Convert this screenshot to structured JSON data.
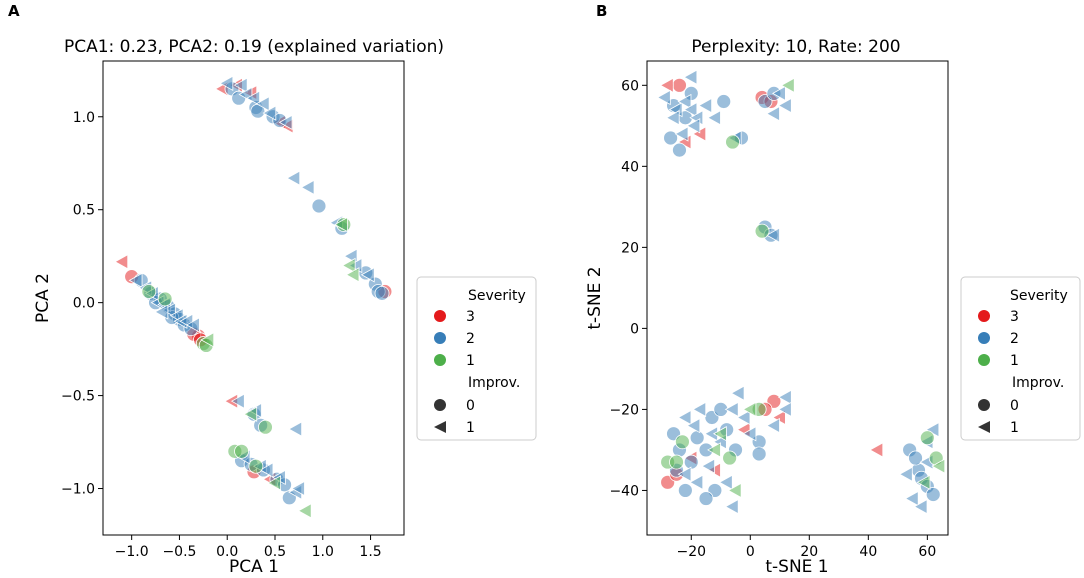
{
  "chart_data": [
    {
      "panel_label": "A",
      "type": "scatter",
      "title": "PCA1: 0.23, PCA2: 0.19 (explained variation)",
      "xlabel": "PCA 1",
      "ylabel": "PCA 2",
      "xlim": [
        -1.3,
        1.85
      ],
      "ylim": [
        -1.25,
        1.3
      ],
      "xticks": [
        -1.0,
        -0.5,
        0.0,
        0.5,
        1.0,
        1.5
      ],
      "xtick_labels": [
        "−1.0",
        "−0.5",
        "0.0",
        "0.5",
        "1.0",
        "1.5"
      ],
      "yticks": [
        -1.0,
        -0.5,
        0.0,
        0.5,
        1.0
      ],
      "ytick_labels": [
        "−1.0",
        "−0.5",
        "0.0",
        "0.5",
        "1.0"
      ],
      "legend": {
        "placement": "right",
        "hue_title": "Severity",
        "hue_entries": [
          {
            "label": "3",
            "color": "#e41a1c"
          },
          {
            "label": "2",
            "color": "#377eb8"
          },
          {
            "label": "1",
            "color": "#4daf4a"
          }
        ],
        "style_title": "Improv.",
        "style_entries": [
          {
            "label": "0",
            "marker": "circle"
          },
          {
            "label": "1",
            "marker": "triangle-left"
          }
        ]
      },
      "series": [
        {
          "severity": "3",
          "improv": "0",
          "points": [
            [
              -1.0,
              0.14
            ],
            [
              -0.3,
              -0.18
            ],
            [
              -0.35,
              -0.17
            ],
            [
              1.65,
              0.06
            ],
            [
              0.28,
              -0.91
            ],
            [
              -0.28,
              -0.2
            ]
          ]
        },
        {
          "severity": "3",
          "improv": "1",
          "points": [
            [
              -1.1,
              0.22
            ],
            [
              0.1,
              1.17
            ],
            [
              0.25,
              1.13
            ],
            [
              0.55,
              0.97
            ],
            [
              0.05,
              -0.53
            ],
            [
              0.45,
              -0.95
            ],
            [
              0.63,
              0.95
            ],
            [
              -0.05,
              1.15
            ]
          ]
        },
        {
          "severity": "2",
          "improv": "0",
          "points": [
            [
              0.05,
              1.15
            ],
            [
              0.12,
              1.1
            ],
            [
              0.3,
              1.05
            ],
            [
              0.32,
              1.03
            ],
            [
              0.48,
              1.0
            ],
            [
              0.55,
              0.98
            ],
            [
              0.96,
              0.52
            ],
            [
              1.2,
              0.4
            ],
            [
              1.45,
              0.16
            ],
            [
              1.55,
              0.1
            ],
            [
              1.58,
              0.06
            ],
            [
              1.62,
              0.05
            ],
            [
              -0.9,
              0.12
            ],
            [
              -0.8,
              0.05
            ],
            [
              -0.7,
              0.02
            ],
            [
              -0.62,
              -0.02
            ],
            [
              -0.55,
              -0.06
            ],
            [
              -0.5,
              -0.09
            ],
            [
              -0.45,
              -0.12
            ],
            [
              -0.38,
              -0.14
            ],
            [
              0.28,
              -0.6
            ],
            [
              0.35,
              -0.66
            ],
            [
              0.15,
              -0.85
            ],
            [
              0.25,
              -0.87
            ],
            [
              0.38,
              -0.9
            ],
            [
              0.52,
              -0.95
            ],
            [
              0.6,
              -0.98
            ],
            [
              0.65,
              -1.05
            ],
            [
              -0.75,
              0.0
            ],
            [
              -0.58,
              -0.08
            ]
          ]
        },
        {
          "severity": "2",
          "improv": "1",
          "points": [
            [
              0.0,
              1.18
            ],
            [
              0.15,
              1.17
            ],
            [
              0.2,
              1.12
            ],
            [
              0.28,
              1.1
            ],
            [
              0.38,
              1.07
            ],
            [
              0.45,
              1.02
            ],
            [
              0.62,
              0.97
            ],
            [
              0.7,
              0.67
            ],
            [
              0.85,
              0.62
            ],
            [
              1.15,
              0.43
            ],
            [
              1.3,
              0.25
            ],
            [
              1.35,
              0.2
            ],
            [
              1.48,
              0.15
            ],
            [
              -0.95,
              0.12
            ],
            [
              -0.85,
              0.08
            ],
            [
              -0.78,
              0.05
            ],
            [
              -0.72,
              0.0
            ],
            [
              -0.65,
              -0.01
            ],
            [
              -0.6,
              -0.04
            ],
            [
              -0.52,
              -0.07
            ],
            [
              -0.48,
              -0.1
            ],
            [
              -0.42,
              -0.1
            ],
            [
              -0.35,
              -0.12
            ],
            [
              0.12,
              -0.53
            ],
            [
              0.3,
              -0.58
            ],
            [
              0.18,
              -0.83
            ],
            [
              0.35,
              -0.88
            ],
            [
              0.42,
              -0.9
            ],
            [
              0.55,
              -0.94
            ],
            [
              0.72,
              -1.02
            ],
            [
              0.72,
              -0.68
            ],
            [
              0.75,
              -1.0
            ],
            [
              -0.68,
              -0.05
            ]
          ]
        },
        {
          "severity": "1",
          "improv": "0",
          "points": [
            [
              0.08,
              -0.8
            ],
            [
              0.15,
              -0.8
            ],
            [
              0.4,
              -0.67
            ],
            [
              -0.25,
              -0.22
            ],
            [
              -0.22,
              -0.23
            ],
            [
              1.22,
              0.42
            ],
            [
              -0.65,
              0.02
            ],
            [
              -0.82,
              0.06
            ],
            [
              0.3,
              -0.88
            ]
          ]
        },
        {
          "severity": "1",
          "improv": "1",
          "points": [
            [
              0.82,
              -1.12
            ],
            [
              -0.2,
              -0.2
            ],
            [
              0.5,
              -0.97
            ],
            [
              1.28,
              0.2
            ],
            [
              1.32,
              0.15
            ],
            [
              1.2,
              0.42
            ],
            [
              0.25,
              -0.6
            ]
          ]
        }
      ]
    },
    {
      "panel_label": "B",
      "type": "scatter",
      "title": "Perplexity: 10, Rate: 200",
      "xlabel": "t-SNE 1",
      "ylabel": "t-SNE 2",
      "xlim": [
        -35,
        67
      ],
      "ylim": [
        -51,
        66
      ],
      "xticks": [
        -20,
        0,
        20,
        40,
        60
      ],
      "xtick_labels": [
        "−20",
        "0",
        "20",
        "40",
        "60"
      ],
      "yticks": [
        -40,
        -20,
        0,
        20,
        40,
        60
      ],
      "ytick_labels": [
        "−40",
        "−20",
        "0",
        "20",
        "40",
        "60"
      ],
      "legend": {
        "placement": "right",
        "hue_title": "Severity",
        "hue_entries": [
          {
            "label": "3",
            "color": "#e41a1c"
          },
          {
            "label": "2",
            "color": "#377eb8"
          },
          {
            "label": "1",
            "color": "#4daf4a"
          }
        ],
        "style_title": "Improv.",
        "style_entries": [
          {
            "label": "0",
            "marker": "circle"
          },
          {
            "label": "1",
            "marker": "triangle-left"
          }
        ]
      },
      "series": [
        {
          "severity": "3",
          "improv": "0",
          "points": [
            [
              -24,
              60
            ],
            [
              4,
              57
            ],
            [
              7,
              56
            ],
            [
              -28,
              -38
            ],
            [
              8,
              -18
            ],
            [
              -25,
              -36
            ],
            [
              5,
              -20
            ]
          ]
        },
        {
          "severity": "3",
          "improv": "1",
          "points": [
            [
              -28,
              60
            ],
            [
              -17,
              48
            ],
            [
              -22,
              46
            ],
            [
              43,
              -30
            ],
            [
              -12,
              -35
            ],
            [
              -2,
              -25
            ],
            [
              -20,
              -32
            ],
            [
              10,
              -22
            ]
          ]
        },
        {
          "severity": "2",
          "improv": "0",
          "points": [
            [
              -26,
              55
            ],
            [
              -22,
              52
            ],
            [
              -27,
              47
            ],
            [
              -20,
              58
            ],
            [
              -24,
              44
            ],
            [
              -9,
              56
            ],
            [
              5,
              56
            ],
            [
              8,
              58
            ],
            [
              -3,
              47
            ],
            [
              5,
              25
            ],
            [
              7,
              23
            ],
            [
              -26,
              -26
            ],
            [
              -24,
              -30
            ],
            [
              -20,
              -33
            ],
            [
              -18,
              -27
            ],
            [
              -15,
              -30
            ],
            [
              -13,
              -22
            ],
            [
              -10,
              -20
            ],
            [
              -8,
              -25
            ],
            [
              -5,
              -30
            ],
            [
              -12,
              -40
            ],
            [
              -15,
              -42
            ],
            [
              -22,
              -40
            ],
            [
              -25,
              -35
            ],
            [
              3,
              -28
            ],
            [
              3,
              -31
            ],
            [
              54,
              -30
            ],
            [
              57,
              -35
            ],
            [
              58,
              -37
            ],
            [
              60,
              -39
            ],
            [
              62,
              -41
            ],
            [
              56,
              -32
            ]
          ]
        },
        {
          "severity": "2",
          "improv": "1",
          "points": [
            [
              -29,
              57
            ],
            [
              -25,
              54
            ],
            [
              -22,
              56
            ],
            [
              -20,
              54
            ],
            [
              -18,
              52
            ],
            [
              -26,
              52
            ],
            [
              -19,
              50
            ],
            [
              -23,
              48
            ],
            [
              -20,
              62
            ],
            [
              -15,
              55
            ],
            [
              -12,
              52
            ],
            [
              -5,
              47
            ],
            [
              8,
              53
            ],
            [
              12,
              55
            ],
            [
              10,
              58
            ],
            [
              8,
              23
            ],
            [
              -22,
              -22
            ],
            [
              -19,
              -24
            ],
            [
              -17,
              -20
            ],
            [
              -13,
              -26
            ],
            [
              -10,
              -28
            ],
            [
              -6,
              -20
            ],
            [
              -4,
              -16
            ],
            [
              -2,
              -22
            ],
            [
              0,
              -26
            ],
            [
              -14,
              -34
            ],
            [
              -8,
              -38
            ],
            [
              -6,
              -44
            ],
            [
              -18,
              -38
            ],
            [
              -22,
              -36
            ],
            [
              12,
              -17
            ],
            [
              12,
              -20
            ],
            [
              8,
              -24
            ],
            [
              55,
              -42
            ],
            [
              60,
              -28
            ],
            [
              62,
              -25
            ],
            [
              58,
              -44
            ],
            [
              53,
              -36
            ],
            [
              60,
              -33
            ]
          ]
        },
        {
          "severity": "1",
          "improv": "0",
          "points": [
            [
              -6,
              46
            ],
            [
              4,
              24
            ],
            [
              -28,
              -33
            ],
            [
              -25,
              -33
            ],
            [
              -23,
              -28
            ],
            [
              -7,
              -32
            ],
            [
              60,
              -27
            ],
            [
              63,
              -32
            ],
            [
              3,
              -20
            ]
          ]
        },
        {
          "severity": "1",
          "improv": "1",
          "points": [
            [
              13,
              60
            ],
            [
              -10,
              -26
            ],
            [
              -5,
              -40
            ],
            [
              59,
              -38
            ],
            [
              64,
              -34
            ],
            [
              -12,
              -30
            ],
            [
              0,
              -20
            ]
          ]
        }
      ]
    }
  ]
}
